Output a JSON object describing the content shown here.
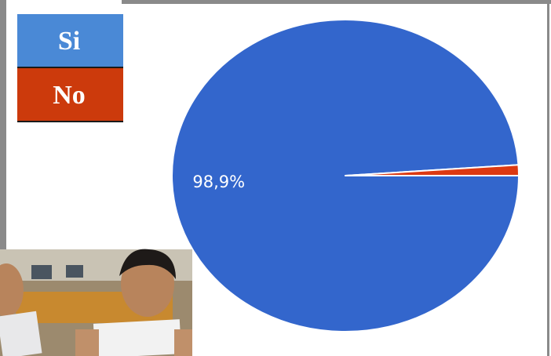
{
  "chart_data": {
    "type": "pie",
    "categories": [
      "Si",
      "No"
    ],
    "values": [
      98.9,
      1.1
    ],
    "value_labels": [
      "98,9%",
      null
    ],
    "colors": [
      "#3366cc",
      "#dc3912"
    ],
    "legend_colors": [
      "#4a89d6",
      "#cc3a0c"
    ]
  }
}
